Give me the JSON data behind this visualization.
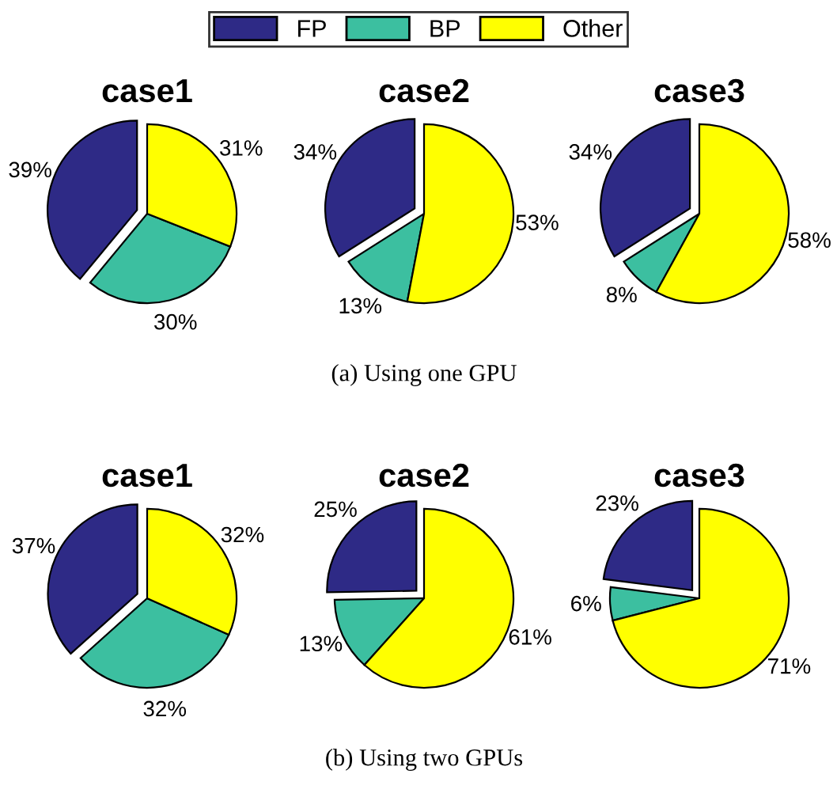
{
  "chart_data": [
    {
      "type": "pie",
      "title": "case1",
      "categories": [
        "FP",
        "BP",
        "Other"
      ],
      "values": [
        39,
        30,
        31
      ],
      "value_labels": [
        "39%",
        "30%",
        "31%"
      ],
      "colors": [
        "#2e2a86",
        "#3cbfa0",
        "#ffff00"
      ],
      "legend": "top"
    },
    {
      "type": "pie",
      "title": "case2",
      "values": [
        34,
        13,
        53
      ],
      "value_labels": [
        "34%",
        "13%",
        "53%"
      ],
      "colors": [
        "#2e2a86",
        "#3cbfa0",
        "#ffff00"
      ],
      "annotations": [
        "(a) Using one GPU"
      ]
    },
    {
      "type": "pie",
      "title": "case3",
      "values": [
        34,
        8,
        58
      ],
      "value_labels": [
        "34%",
        "8%",
        "58%"
      ],
      "colors": [
        "#2e2a86",
        "#3cbfa0",
        "#ffff00"
      ]
    },
    {
      "type": "pie",
      "title": "case1",
      "values": [
        37,
        32,
        32
      ],
      "value_labels": [
        "37%",
        "32%",
        "32%"
      ],
      "colors": [
        "#2e2a86",
        "#3cbfa0",
        "#ffff00"
      ]
    },
    {
      "type": "pie",
      "title": "case2",
      "values": [
        25,
        13,
        61
      ],
      "value_labels": [
        "25%",
        "13%",
        "61%"
      ],
      "colors": [
        "#2e2a86",
        "#3cbfa0",
        "#ffff00"
      ],
      "annotations": [
        "(b) Using two GPUs"
      ]
    },
    {
      "type": "pie",
      "title": "case3",
      "values": [
        23,
        6,
        71
      ],
      "value_labels": [
        "23%",
        "6%",
        "71%"
      ],
      "colors": [
        "#2e2a86",
        "#3cbfa0",
        "#ffff00"
      ]
    }
  ]
}
